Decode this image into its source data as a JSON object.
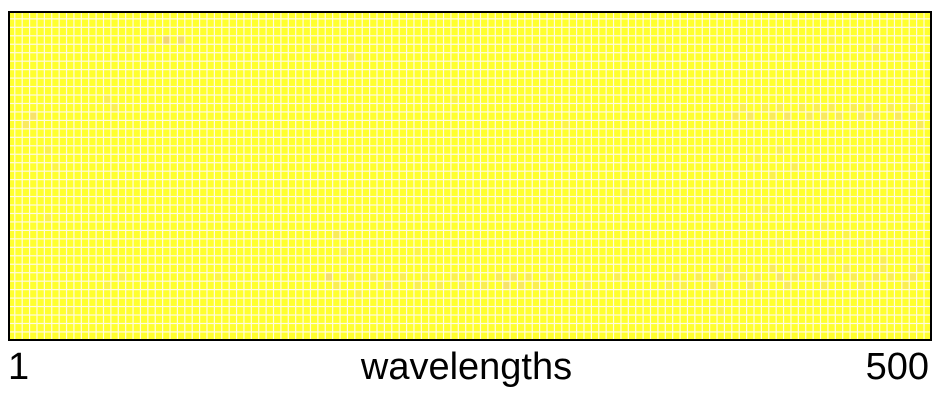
{
  "chart_data": {
    "type": "heatmap",
    "title": "",
    "xlabel": "wavelengths",
    "ylabel": "",
    "x_tick_labels": [
      "1",
      "500"
    ],
    "xlim": [
      1,
      500
    ],
    "grid": true,
    "colors": {
      "base": "#ffff2e",
      "mid": "#f7e36a",
      "high": "#e8c07a",
      "grid": "#fffbe0",
      "frame": "#000000"
    },
    "n_cols": 125,
    "n_rows": 39,
    "default_value": 0,
    "highlighted_cells": [
      [
        19,
        3,
        0.4
      ],
      [
        21,
        3,
        0.7
      ],
      [
        23,
        3,
        0.6
      ],
      [
        16,
        4,
        0.25
      ],
      [
        41,
        4,
        0.25
      ],
      [
        46,
        5,
        0.4
      ],
      [
        71,
        4,
        0.2
      ],
      [
        88,
        4,
        0.2
      ],
      [
        111,
        3,
        0.2
      ],
      [
        117,
        4,
        0.35
      ],
      [
        3,
        12,
        0.5
      ],
      [
        2,
        13,
        0.4
      ],
      [
        13,
        10,
        0.3
      ],
      [
        14,
        11,
        0.3
      ],
      [
        98,
        12,
        0.35
      ],
      [
        99,
        11,
        0.3
      ],
      [
        100,
        12,
        0.4
      ],
      [
        102,
        11,
        0.25
      ],
      [
        103,
        12,
        0.35
      ],
      [
        104,
        11,
        0.3
      ],
      [
        105,
        12,
        0.45
      ],
      [
        107,
        11,
        0.3
      ],
      [
        108,
        12,
        0.35
      ],
      [
        109,
        11,
        0.3
      ],
      [
        110,
        12,
        0.4
      ],
      [
        111,
        11,
        0.3
      ],
      [
        112,
        12,
        0.35
      ],
      [
        114,
        11,
        0.3
      ],
      [
        115,
        12,
        0.4
      ],
      [
        116,
        11,
        0.3
      ],
      [
        117,
        12,
        0.35
      ],
      [
        119,
        11,
        0.3
      ],
      [
        120,
        12,
        0.4
      ],
      [
        122,
        11,
        0.3
      ],
      [
        123,
        13,
        0.35
      ],
      [
        60,
        10,
        0.2
      ],
      [
        75,
        13,
        0.2
      ],
      [
        5,
        16,
        0.25
      ],
      [
        6,
        18,
        0.2
      ],
      [
        104,
        16,
        0.3
      ],
      [
        106,
        18,
        0.3
      ],
      [
        103,
        19,
        0.25
      ],
      [
        101,
        17,
        0.2
      ],
      [
        83,
        21,
        0.25
      ],
      [
        102,
        23,
        0.25
      ],
      [
        110,
        25,
        0.2
      ],
      [
        5,
        24,
        0.25
      ],
      [
        44,
        26,
        0.35
      ],
      [
        45,
        28,
        0.3
      ],
      [
        55,
        28,
        0.2
      ],
      [
        113,
        26,
        0.2
      ],
      [
        111,
        28,
        0.25
      ],
      [
        116,
        27,
        0.25
      ],
      [
        118,
        29,
        0.3
      ],
      [
        104,
        27,
        0.25
      ],
      [
        43,
        31,
        0.6
      ],
      [
        44,
        32,
        0.3
      ],
      [
        46,
        31,
        0.3
      ],
      [
        47,
        33,
        0.25
      ],
      [
        49,
        31,
        0.25
      ],
      [
        51,
        32,
        0.35
      ],
      [
        53,
        31,
        0.3
      ],
      [
        55,
        32,
        0.3
      ],
      [
        56,
        31,
        0.25
      ],
      [
        58,
        32,
        0.3
      ],
      [
        60,
        31,
        0.25
      ],
      [
        61,
        32,
        0.3
      ],
      [
        62,
        31,
        0.3
      ],
      [
        64,
        32,
        0.3
      ],
      [
        66,
        31,
        0.35
      ],
      [
        67,
        32,
        0.5
      ],
      [
        68,
        31,
        0.45
      ],
      [
        69,
        32,
        0.4
      ],
      [
        70,
        31,
        0.35
      ],
      [
        71,
        32,
        0.3
      ],
      [
        73,
        31,
        0.25
      ],
      [
        78,
        32,
        0.25
      ],
      [
        82,
        31,
        0.3
      ],
      [
        89,
        32,
        0.25
      ],
      [
        90,
        31,
        0.3
      ],
      [
        91,
        32,
        0.25
      ],
      [
        93,
        31,
        0.3
      ],
      [
        95,
        32,
        0.45
      ],
      [
        96,
        31,
        0.4
      ],
      [
        97,
        30,
        0.3
      ],
      [
        99,
        31,
        0.3
      ],
      [
        100,
        32,
        0.35
      ],
      [
        101,
        31,
        0.3
      ],
      [
        103,
        30,
        0.35
      ],
      [
        104,
        31,
        0.5
      ],
      [
        105,
        32,
        0.4
      ],
      [
        106,
        31,
        0.3
      ],
      [
        107,
        30,
        0.3
      ],
      [
        109,
        31,
        0.3
      ],
      [
        110,
        32,
        0.3
      ],
      [
        111,
        31,
        0.35
      ],
      [
        113,
        30,
        0.35
      ],
      [
        114,
        31,
        0.3
      ],
      [
        115,
        32,
        0.3
      ],
      [
        117,
        31,
        0.35
      ],
      [
        118,
        30,
        0.3
      ],
      [
        119,
        31,
        0.3
      ],
      [
        121,
        32,
        0.3
      ],
      [
        122,
        31,
        0.4
      ],
      [
        123,
        30,
        0.35
      ],
      [
        15,
        31,
        0.25
      ],
      [
        13,
        32,
        0.2
      ],
      [
        28,
        31,
        0.2
      ],
      [
        8,
        35,
        0.2
      ],
      [
        96,
        35,
        0.2
      ]
    ]
  }
}
